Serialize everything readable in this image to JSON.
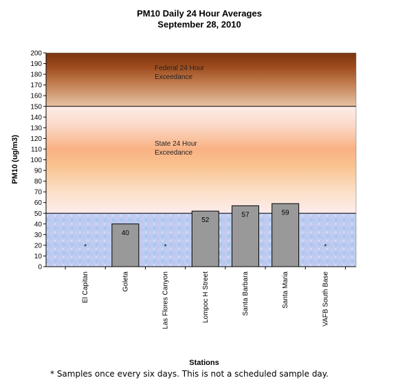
{
  "chart_data": {
    "type": "bar",
    "title": "PM10 Daily 24 Hour Averages",
    "subtitle": "September 28, 2010",
    "xlabel": "Stations",
    "ylabel": "PM10 (ug/m3)",
    "ylim": [
      0,
      200
    ],
    "ytick_step": 10,
    "categories": [
      "El Capitan",
      "Goleta",
      "Las Flores Canyon",
      "Lompoc H Street",
      "Santa Barbara",
      "Santa Maria",
      "VAFB South Base"
    ],
    "values": [
      null,
      40,
      null,
      52,
      57,
      59,
      null
    ],
    "value_labels": [
      "*",
      "40",
      "*",
      "52",
      "57",
      "59",
      "*"
    ],
    "no_sample_marker": "*",
    "thresholds": [
      {
        "value": 50,
        "label_line1": "State 24 Hour",
        "label_line2": "Exceedance"
      },
      {
        "value": 150,
        "label_line1": "Federal 24 Hour",
        "label_line2": "Exceedance"
      }
    ],
    "colors": {
      "bar": "#999999",
      "bar_edge": "#000000",
      "low_band": "#b8c9f0",
      "state_band": "#f9b37d",
      "federal_band": "#8b3a10"
    },
    "grid": false
  },
  "footnote": "*  Samples once every six days.  This is not a scheduled sample day."
}
